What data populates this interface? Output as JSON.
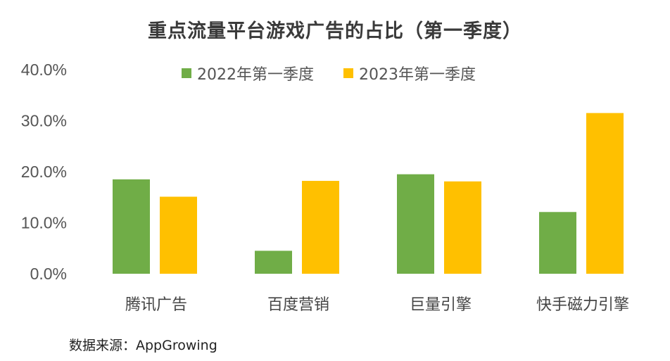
{
  "chart_data": {
    "type": "bar",
    "title": "重点流量平台游戏广告的占比（第一季度）",
    "categories": [
      "腾讯广告",
      "百度营销",
      "巨量引擎",
      "快手磁力引擎"
    ],
    "series": [
      {
        "name": "2022年第一季度",
        "color": "#70ad47",
        "values": [
          18.5,
          4.5,
          19.5,
          12.1
        ]
      },
      {
        "name": "2023年第一季度",
        "color": "#ffc000",
        "values": [
          15.1,
          18.2,
          18.1,
          31.5
        ]
      }
    ],
    "y_ticks": [
      "0.0%",
      "10.0%",
      "20.0%",
      "30.0%",
      "40.0%"
    ],
    "ylim": [
      0,
      40
    ],
    "grid": false,
    "legend_position": "top"
  },
  "source_note": "数据来源：AppGrowing"
}
